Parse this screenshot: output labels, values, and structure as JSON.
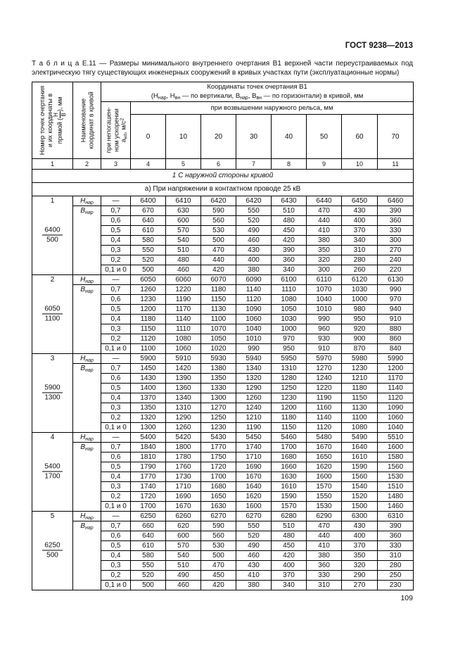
{
  "page": {
    "standard_ref": "ГОСТ 9238—2013",
    "page_number": "109"
  },
  "caption": "Т а б л и ц а  Е.11 — Размеры минимального внутреннего очертания В1 верхней части переустраиваемых под электрическую тягу существующих инженерных сооружений в кривых участках пути (эксплуатационные нормы)",
  "table": {
    "col1_header": "Номер точек очертания и их координаты в прямой ({Н|В}), мм",
    "col2_header": "Наименование координат в кривой",
    "col3_header": "при непогашен­ном ускорении а~нп~, м/с^2^",
    "span_header_line1": "Координаты точек очертания В1",
    "span_header_line2": "(Н~нар~, Н~вн~ — по вертикали, В~нар~, В~вн~ — по горизонтали) в кривой, мм",
    "elevation_header": "при возвышении наружного рельса, мм",
    "elevations": [
      "0",
      "10",
      "20",
      "30",
      "40",
      "50",
      "60",
      "70"
    ],
    "column_numbers": [
      "1",
      "2",
      "3",
      "4",
      "5",
      "6",
      "7",
      "8",
      "9",
      "10",
      "11"
    ],
    "section_title": "1 С наружной стороны кривой",
    "subsection_title": "а) При напряжении в контактном проводе 25 кВ",
    "h_row_label": "Н~нар~",
    "b_row_label": "В~нар~",
    "h_accel": "—",
    "b_accels": [
      "0,7",
      "0,6",
      "0,5",
      "0,4",
      "0,3",
      "0,2",
      "0,1 и 0"
    ],
    "blocks": [
      {
        "point": "1",
        "fraction_top": "6400",
        "fraction_bottom": "500",
        "h_values": [
          "6400",
          "6410",
          "6420",
          "6420",
          "6430",
          "6440",
          "6450",
          "6460"
        ],
        "b_values": [
          [
            "670",
            "630",
            "590",
            "550",
            "510",
            "470",
            "430",
            "390"
          ],
          [
            "640",
            "600",
            "560",
            "520",
            "480",
            "440",
            "400",
            "360"
          ],
          [
            "610",
            "570",
            "530",
            "490",
            "450",
            "410",
            "370",
            "330"
          ],
          [
            "580",
            "540",
            "500",
            "460",
            "420",
            "380",
            "340",
            "300"
          ],
          [
            "550",
            "510",
            "470",
            "430",
            "390",
            "350",
            "310",
            "270"
          ],
          [
            "520",
            "480",
            "440",
            "400",
            "360",
            "320",
            "280",
            "240"
          ],
          [
            "500",
            "460",
            "420",
            "380",
            "340",
            "300",
            "260",
            "220"
          ]
        ]
      },
      {
        "point": "2",
        "fraction_top": "6050",
        "fraction_bottom": "1100",
        "h_values": [
          "6050",
          "6060",
          "6070",
          "6090",
          "6100",
          "6110",
          "6120",
          "6130"
        ],
        "b_values": [
          [
            "1260",
            "1220",
            "1180",
            "1140",
            "1110",
            "1070",
            "1030",
            "990"
          ],
          [
            "1230",
            "1190",
            "1150",
            "1120",
            "1080",
            "1040",
            "1000",
            "970"
          ],
          [
            "1200",
            "1170",
            "1130",
            "1090",
            "1050",
            "1010",
            "980",
            "940"
          ],
          [
            "1180",
            "1140",
            "1100",
            "1060",
            "1030",
            "990",
            "950",
            "910"
          ],
          [
            "1150",
            "1110",
            "1070",
            "1040",
            "1000",
            "960",
            "920",
            "880"
          ],
          [
            "1120",
            "1080",
            "1050",
            "1010",
            "970",
            "930",
            "900",
            "860"
          ],
          [
            "1100",
            "1060",
            "1020",
            "990",
            "950",
            "910",
            "870",
            "840"
          ]
        ]
      },
      {
        "point": "3",
        "fraction_top": "5900",
        "fraction_bottom": "1300",
        "h_values": [
          "5900",
          "5910",
          "5930",
          "5940",
          "5950",
          "5970",
          "5980",
          "5990"
        ],
        "b_values": [
          [
            "1450",
            "1420",
            "1380",
            "1340",
            "1310",
            "1270",
            "1230",
            "1200"
          ],
          [
            "1430",
            "1390",
            "1350",
            "1320",
            "1280",
            "1240",
            "1210",
            "1170"
          ],
          [
            "1400",
            "1360",
            "1330",
            "1290",
            "1250",
            "1220",
            "1180",
            "1140"
          ],
          [
            "1370",
            "1340",
            "1300",
            "1260",
            "1230",
            "1190",
            "1150",
            "1120"
          ],
          [
            "1350",
            "1310",
            "1270",
            "1240",
            "1200",
            "1160",
            "1130",
            "1090"
          ],
          [
            "1320",
            "1290",
            "1250",
            "1210",
            "1180",
            "1140",
            "1100",
            "1060"
          ],
          [
            "1300",
            "1260",
            "1230",
            "1190",
            "1150",
            "1120",
            "1080",
            "1040"
          ]
        ]
      },
      {
        "point": "4",
        "fraction_top": "5400",
        "fraction_bottom": "1700",
        "h_values": [
          "5400",
          "5420",
          "5430",
          "5450",
          "5460",
          "5480",
          "5490",
          "5510"
        ],
        "b_values": [
          [
            "1840",
            "1800",
            "1770",
            "1740",
            "1700",
            "1670",
            "1640",
            "1600"
          ],
          [
            "1810",
            "1780",
            "1750",
            "1710",
            "1680",
            "1650",
            "1610",
            "1580"
          ],
          [
            "1790",
            "1760",
            "1720",
            "1690",
            "1660",
            "1620",
            "1590",
            "1560"
          ],
          [
            "1770",
            "1730",
            "1700",
            "1670",
            "1630",
            "1600",
            "1560",
            "1530"
          ],
          [
            "1740",
            "1710",
            "1680",
            "1640",
            "1610",
            "1570",
            "1540",
            "1510"
          ],
          [
            "1720",
            "1690",
            "1650",
            "1620",
            "1590",
            "1550",
            "1520",
            "1480"
          ],
          [
            "1700",
            "1670",
            "1630",
            "1600",
            "1570",
            "1530",
            "1500",
            "1460"
          ]
        ]
      },
      {
        "point": "5",
        "fraction_top": "6250",
        "fraction_bottom": "500",
        "h_values": [
          "6250",
          "6260",
          "6270",
          "6270",
          "6280",
          "6290",
          "6300",
          "6310"
        ],
        "b_values": [
          [
            "660",
            "620",
            "590",
            "550",
            "510",
            "470",
            "430",
            "390"
          ],
          [
            "640",
            "600",
            "560",
            "520",
            "480",
            "440",
            "400",
            "360"
          ],
          [
            "610",
            "570",
            "530",
            "490",
            "450",
            "410",
            "370",
            "330"
          ],
          [
            "580",
            "540",
            "500",
            "460",
            "420",
            "380",
            "350",
            "310"
          ],
          [
            "550",
            "510",
            "470",
            "430",
            "400",
            "360",
            "320",
            "280"
          ],
          [
            "520",
            "490",
            "450",
            "410",
            "370",
            "330",
            "290",
            "250"
          ],
          [
            "500",
            "460",
            "420",
            "380",
            "340",
            "310",
            "270",
            "230"
          ]
        ]
      }
    ]
  }
}
